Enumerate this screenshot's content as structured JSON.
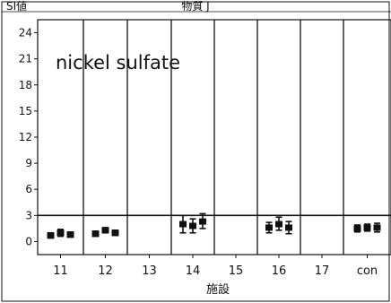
{
  "chart_data": {
    "type": "scatter",
    "title": "物質 J",
    "ylabel": "SI値",
    "xlabel": "施設",
    "annotation": "nickel sulfate",
    "categories": [
      "11",
      "12",
      "13",
      "14",
      "15",
      "16",
      "17",
      "con"
    ],
    "yticks": [
      "24",
      "21",
      "18",
      "15",
      "12",
      "9",
      "6",
      "3",
      "0"
    ],
    "ylim": [
      -1.5,
      25.5
    ],
    "reference_line": 3,
    "grid": false,
    "groups": [
      {
        "category": "11",
        "points": [
          {
            "mean": 0.7,
            "low": 0.4,
            "high": 1.0
          },
          {
            "mean": 1.0,
            "low": 0.6,
            "high": 1.4
          },
          {
            "mean": 0.8,
            "low": 0.5,
            "high": 1.1
          }
        ]
      },
      {
        "category": "12",
        "points": [
          {
            "mean": 0.9,
            "low": 0.6,
            "high": 1.2
          },
          {
            "mean": 1.3,
            "low": 1.0,
            "high": 1.6
          },
          {
            "mean": 1.0,
            "low": 0.7,
            "high": 1.3
          }
        ]
      },
      {
        "category": "13",
        "points": []
      },
      {
        "category": "14",
        "points": [
          {
            "mean": 2.0,
            "low": 1.0,
            "high": 3.0
          },
          {
            "mean": 1.8,
            "low": 1.0,
            "high": 2.6
          },
          {
            "mean": 2.3,
            "low": 1.5,
            "high": 3.2
          }
        ]
      },
      {
        "category": "15",
        "points": []
      },
      {
        "category": "16",
        "points": [
          {
            "mean": 1.6,
            "low": 1.0,
            "high": 2.2
          },
          {
            "mean": 2.0,
            "low": 1.3,
            "high": 2.8
          },
          {
            "mean": 1.6,
            "low": 0.9,
            "high": 2.3
          }
        ]
      },
      {
        "category": "17",
        "points": []
      },
      {
        "category": "con",
        "points": [
          {
            "mean": 1.5,
            "low": 1.1,
            "high": 1.9
          },
          {
            "mean": 1.6,
            "low": 1.2,
            "high": 2.0
          },
          {
            "mean": 1.6,
            "low": 1.1,
            "high": 2.1
          }
        ]
      }
    ]
  }
}
